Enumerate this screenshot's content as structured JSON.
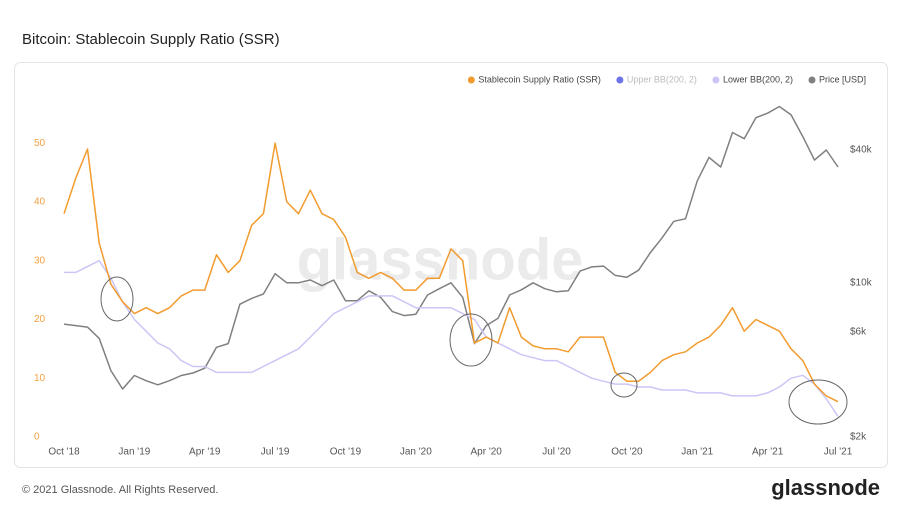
{
  "title": "Bitcoin: Stablecoin Supply Ratio (SSR)",
  "footer": "© 2021 Glassnode. All Rights Reserved.",
  "logo": "glassnode",
  "chart_data": {
    "type": "line",
    "watermark": "glassnode",
    "categories": [
      "Oct '18",
      null,
      null,
      null,
      null,
      null,
      "Jan '19",
      null,
      null,
      null,
      null,
      null,
      "Apr '19",
      null,
      null,
      null,
      null,
      null,
      "Jul '19",
      null,
      null,
      null,
      null,
      null,
      "Oct '19",
      null,
      null,
      null,
      null,
      null,
      "Jan '20",
      null,
      null,
      null,
      null,
      null,
      "Apr '20",
      null,
      null,
      null,
      null,
      null,
      "Jul '20",
      null,
      null,
      null,
      null,
      null,
      "Oct '20",
      null,
      null,
      null,
      null,
      null,
      "Jan '21",
      null,
      null,
      null,
      null,
      null,
      "Apr '21",
      null,
      null,
      null,
      null,
      null,
      "Jul '21"
    ],
    "series": [
      {
        "name": "Stablecoin Supply Ratio (SSR)",
        "color": "#f29b2e",
        "axis": "y",
        "values": [
          38,
          44,
          49,
          33,
          26,
          23,
          21,
          22,
          21,
          22,
          24,
          25,
          25,
          31,
          28,
          30,
          36,
          38,
          50,
          40,
          38,
          42,
          38,
          37,
          34,
          28,
          27,
          28,
          27,
          25,
          25,
          27,
          27,
          32,
          30,
          16,
          17,
          16,
          22,
          17,
          15.5,
          15,
          15,
          14.5,
          17,
          17,
          17,
          11,
          9.5,
          9.5,
          11,
          13,
          14,
          14.5,
          16,
          17,
          19,
          22,
          18,
          20,
          19,
          18,
          15,
          13,
          9,
          7,
          6
        ]
      },
      {
        "name": "Lower BB(200, 2)",
        "color": "#cbc6f6",
        "axis": "y",
        "values": [
          28,
          28,
          29,
          30,
          27,
          23,
          20,
          18,
          16,
          15,
          13,
          12,
          12,
          11,
          11,
          11,
          11,
          12,
          13,
          14,
          15,
          17,
          19,
          21,
          22,
          23,
          24,
          24,
          24,
          23,
          22,
          22,
          22,
          22,
          21,
          20,
          17,
          16,
          15,
          14,
          13.5,
          13,
          13,
          12,
          11,
          10,
          9.5,
          9,
          9,
          8.5,
          8.5,
          8,
          8,
          8,
          7.5,
          7.5,
          7.5,
          7,
          7,
          7,
          7.5,
          8.5,
          10,
          10.5,
          9,
          6.5,
          3.5
        ]
      },
      {
        "name": "Price [USD]",
        "color": "#808080",
        "axis": "y2",
        "values": [
          6500,
          6400,
          6300,
          5600,
          4000,
          3300,
          3800,
          3600,
          3450,
          3600,
          3800,
          3900,
          4100,
          5100,
          5300,
          8000,
          8500,
          8900,
          11000,
          10000,
          10000,
          10300,
          9700,
          10300,
          8300,
          8300,
          9200,
          8600,
          7400,
          7100,
          7200,
          8800,
          9400,
          10000,
          8600,
          5300,
          6400,
          6900,
          8800,
          9300,
          10000,
          9400,
          9100,
          9200,
          11300,
          11800,
          11900,
          10800,
          10600,
          11400,
          13700,
          16000,
          19000,
          19500,
          29000,
          37000,
          33500,
          48000,
          45000,
          56000,
          58700,
          63000,
          57700,
          46000,
          36000,
          40000,
          33500
        ]
      }
    ],
    "hidden_series": [
      {
        "name": "Upper BB(200, 2)",
        "color": "#6d73e8"
      }
    ],
    "ylim": [
      0,
      57
    ],
    "yticks": [
      0,
      10,
      20,
      30,
      40,
      50
    ],
    "ytick_color": "#f0a040",
    "y2lim": [
      2000,
      66000
    ],
    "y2_log": true,
    "y2ticks": [
      {
        "value": 2000,
        "label": "$2k"
      },
      {
        "value": 6000,
        "label": "$6k"
      },
      {
        "value": 10000,
        "label": "$10k"
      },
      {
        "value": 40000,
        "label": "$40k"
      }
    ],
    "grid": false
  }
}
